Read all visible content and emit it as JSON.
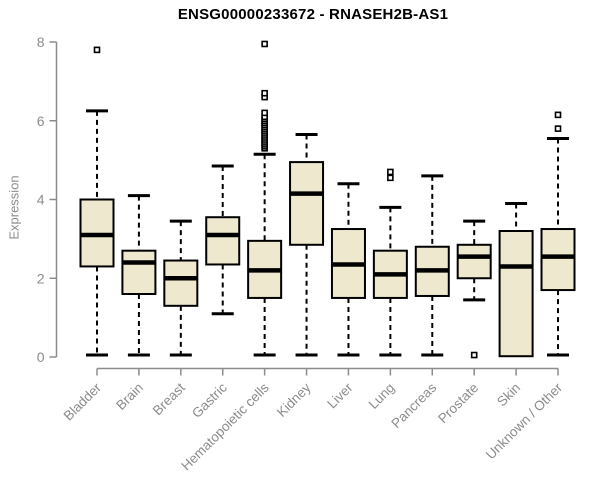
{
  "title": "ENSG00000233672 - RNASEH2B-AS1",
  "colors": {
    "box_fill": "#EDE8CE",
    "box_stroke": "#000000",
    "median": "#000000",
    "whisker": "#000000",
    "outlier_stroke": "#000000",
    "axis": "#8c8c8c",
    "tick_label": "#8c8c8c",
    "title_color": "#000000",
    "background": "#ffffff"
  },
  "chart_data": {
    "type": "boxplot",
    "title": "ENSG00000233672 - RNASEH2B-AS1",
    "xlabel": "",
    "ylabel": "Expression",
    "ylim": [
      0,
      8
    ],
    "yticks": [
      0,
      2,
      4,
      6,
      8
    ],
    "grid": false,
    "legend": "none",
    "categories": [
      "Bladder",
      "Brain",
      "Breast",
      "Gastric",
      "Hematopoietic cells",
      "Kidney",
      "Liver",
      "Lung",
      "Pancreas",
      "Prostate",
      "Skin",
      "Unknown / Other"
    ],
    "series": [
      {
        "name": "Bladder",
        "whisker_low": 0.05,
        "q1": 2.3,
        "median": 3.1,
        "q3": 4.0,
        "whisker_high": 6.25,
        "outliers": [
          7.8
        ]
      },
      {
        "name": "Brain",
        "whisker_low": 0.05,
        "q1": 1.6,
        "median": 2.4,
        "q3": 2.7,
        "whisker_high": 4.1,
        "outliers": []
      },
      {
        "name": "Breast",
        "whisker_low": 0.05,
        "q1": 1.3,
        "median": 2.0,
        "q3": 2.45,
        "whisker_high": 3.45,
        "outliers": []
      },
      {
        "name": "Gastric",
        "whisker_low": 1.1,
        "q1": 2.35,
        "median": 3.1,
        "q3": 3.55,
        "whisker_high": 4.85,
        "outliers": []
      },
      {
        "name": "Hematopoietic cells",
        "whisker_low": 0.05,
        "q1": 1.5,
        "median": 2.2,
        "q3": 2.95,
        "whisker_high": 5.15,
        "outliers": [
          5.3,
          5.35,
          5.4,
          5.45,
          5.5,
          5.55,
          5.6,
          5.65,
          5.7,
          5.75,
          5.8,
          5.85,
          5.9,
          5.95,
          6.0,
          6.05,
          6.1,
          6.2,
          6.6,
          6.7,
          7.95
        ]
      },
      {
        "name": "Kidney",
        "whisker_low": 0.05,
        "q1": 2.85,
        "median": 4.15,
        "q3": 4.95,
        "whisker_high": 5.65,
        "outliers": []
      },
      {
        "name": "Liver",
        "whisker_low": 0.05,
        "q1": 1.5,
        "median": 2.35,
        "q3": 3.25,
        "whisker_high": 4.4,
        "outliers": []
      },
      {
        "name": "Lung",
        "whisker_low": 0.05,
        "q1": 1.5,
        "median": 2.1,
        "q3": 2.7,
        "whisker_high": 3.8,
        "outliers": [
          4.55,
          4.7
        ]
      },
      {
        "name": "Pancreas",
        "whisker_low": 0.05,
        "q1": 1.55,
        "median": 2.2,
        "q3": 2.8,
        "whisker_high": 4.6,
        "outliers": []
      },
      {
        "name": "Prostate",
        "whisker_low": 1.45,
        "q1": 2.0,
        "median": 2.55,
        "q3": 2.85,
        "whisker_high": 3.45,
        "outliers": [
          0.05
        ]
      },
      {
        "name": "Skin",
        "whisker_low": 0.02,
        "q1": 0.02,
        "median": 2.3,
        "q3": 3.2,
        "whisker_high": 3.9,
        "outliers": []
      },
      {
        "name": "Unknown / Other",
        "whisker_low": 0.05,
        "q1": 1.7,
        "median": 2.55,
        "q3": 3.25,
        "whisker_high": 5.55,
        "outliers": [
          5.8,
          6.15
        ]
      }
    ]
  }
}
